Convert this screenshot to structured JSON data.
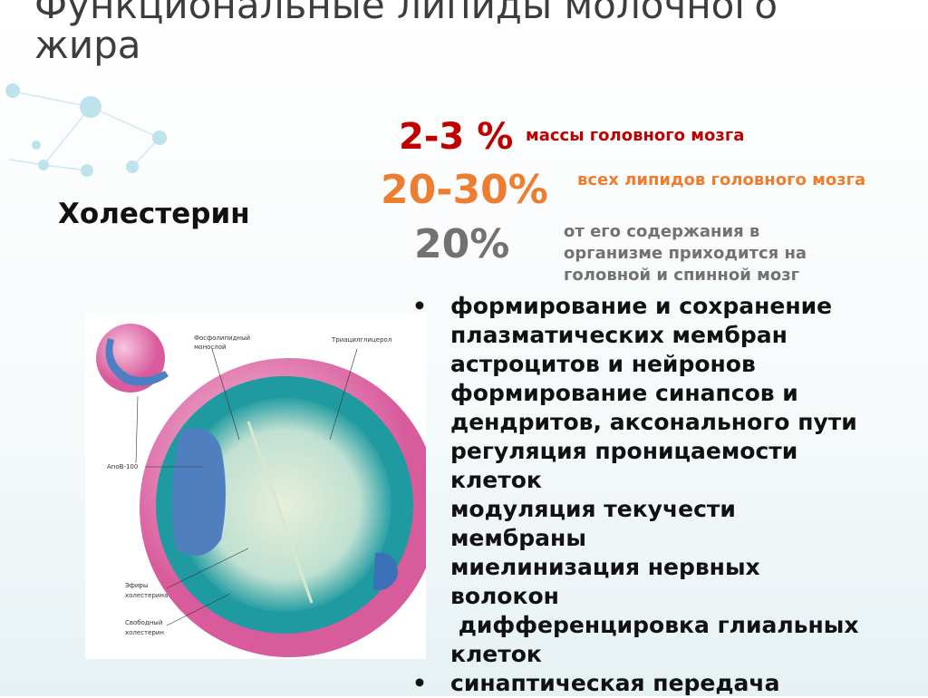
{
  "title": "Функциональные липиды молочного жира",
  "subject": "Холестерин",
  "stats": [
    {
      "value": "2-3 %",
      "text": "массы головного мозга",
      "color": "#c00000"
    },
    {
      "value": "20-30%",
      "text": "всех липидов головного мозга",
      "color": "#ed7d31"
    },
    {
      "value": "20%",
      "text_lines": [
        "от его содержания в",
        "организме приходится на",
        "головной и спинной мозг"
      ],
      "color": "#767171"
    }
  ],
  "functions": [
    {
      "bullet": true,
      "lines": [
        "формирование и сохранение",
        "плазматических мембран",
        "астроцитов и нейронов",
        "формирование синапсов и",
        "дендритов, аксонального пути",
        "регуляция проницаемости",
        "клеток",
        "модуляция текучести",
        "мембраны",
        "миелинизация нервных",
        "волокон",
        " дифференцировка глиальных",
        "клеток"
      ]
    },
    {
      "bullet": true,
      "lines": [
        "синаптическая передача"
      ]
    }
  ],
  "bullet_char": "•",
  "figure_labels": {
    "phospholipid": [
      "Фосфолипидный",
      "монослой"
    ],
    "triacylglycerol": "Триацилглицерол",
    "apob": "АпоВ-100",
    "esters": [
      "Эфиры",
      "холестерина"
    ],
    "free": [
      "Свободный",
      "холестерин"
    ]
  }
}
